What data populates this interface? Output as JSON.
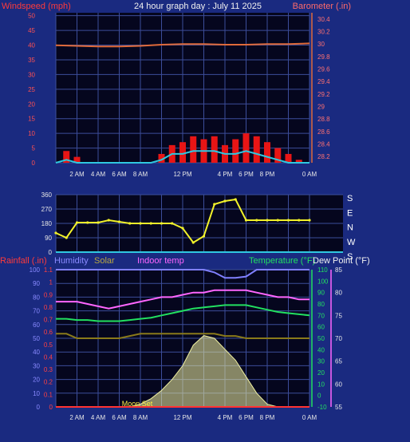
{
  "title": "24 hour graph day : July 11 2025",
  "colors": {
    "page_bg": "#1a2a80",
    "plot_bg": "#05061e",
    "grid": "#3c4d9a"
  },
  "chart_data": [
    {
      "type": "line",
      "name": "wind-barometer",
      "left_label": "Windspeed (mph)",
      "right_label": "Barometer (.in)",
      "left_ticks": [
        0,
        5,
        10,
        15,
        20,
        25,
        30,
        35,
        40,
        45,
        50
      ],
      "right_ticks": [
        "28.2",
        "28.4",
        "28.6",
        "28.8",
        "29",
        "29.2",
        "29.4",
        "29.6",
        "29.8",
        "30",
        "30.2",
        "30.4"
      ],
      "ylim_left": [
        0,
        51
      ],
      "ylim_right": [
        28.1,
        30.5
      ],
      "x_ticks": [
        "2 AM",
        "4 AM",
        "6 AM",
        "8 AM",
        "12 PM",
        "4 PM",
        "6 PM",
        "8 PM",
        "0 AM"
      ],
      "x_tick_hours": [
        2,
        4,
        6,
        8,
        12,
        16,
        18,
        20,
        24
      ],
      "barometer_in": [
        29.98,
        29.97,
        29.96,
        29.96,
        29.97,
        29.99,
        30.0,
        30.0,
        29.99,
        29.99,
        30.0,
        30.0,
        30.01
      ],
      "gust_mph": [
        0,
        4,
        2,
        0,
        0,
        0,
        0,
        0,
        0,
        0,
        3,
        6,
        7,
        9,
        8,
        9,
        6,
        8,
        10,
        9,
        7,
        5,
        3,
        1,
        0
      ],
      "wind_mph": [
        0,
        1,
        0,
        0,
        0,
        0,
        0,
        0,
        0,
        0,
        1,
        3,
        3,
        4,
        4,
        4,
        3,
        3,
        4,
        3,
        2,
        1,
        0,
        0,
        0
      ],
      "colors": {
        "barometer": "#e06a3a",
        "gust": "#e81515",
        "wind": "#2fc8e0"
      }
    },
    {
      "type": "scatter",
      "name": "wind-direction",
      "left_ticks": [
        0,
        90,
        180,
        270,
        360
      ],
      "right_labels": [
        "S",
        "E",
        "N",
        "W",
        "S"
      ],
      "ylim": [
        0,
        360
      ],
      "dir_deg": [
        120,
        90,
        185,
        185,
        185,
        200,
        190,
        180,
        180,
        180,
        180,
        180,
        150,
        60,
        100,
        300,
        320,
        330,
        200,
        200,
        200,
        200,
        200,
        200,
        200
      ],
      "color": "#f2f22a"
    },
    {
      "type": "line",
      "name": "temp-humidity-solar",
      "labels": {
        "rainfall": "Rainfall (.in)",
        "humidity": "Humidity",
        "solar": "Solar",
        "indoor": "Indoor temp",
        "temperature": "Temperature (°F)",
        "dewpoint": "Dew Point (°F)"
      },
      "left_ticks": [
        0,
        10,
        20,
        30,
        40,
        50,
        60,
        70,
        80,
        90,
        100
      ],
      "rain_ticks": [
        "0",
        "0.1",
        "0.2",
        "0.3",
        "0.4",
        "0.5",
        "0.6",
        "0.7",
        "0.8",
        "0.9",
        "1",
        "1.1"
      ],
      "temp_ticks": [
        -10,
        0,
        10,
        20,
        30,
        40,
        50,
        60,
        70,
        80,
        90,
        100,
        110
      ],
      "dew_ticks": [
        55,
        60,
        65,
        70,
        75,
        80,
        85
      ],
      "moon_label": "Moon Set",
      "indoor_f": [
        78,
        78,
        78,
        77.5,
        77,
        76.5,
        77,
        77.5,
        78,
        78.5,
        79,
        79,
        79.5,
        80,
        80,
        80.5,
        80.5,
        80.5,
        80.5,
        80,
        79.5,
        79,
        79,
        78.5,
        78.5
      ],
      "temperature_f": [
        67,
        67,
        66,
        66,
        65,
        65,
        65,
        66,
        67,
        68,
        70,
        72,
        74,
        76,
        77,
        78,
        79,
        79,
        79,
        77,
        75,
        73,
        72,
        71,
        70
      ],
      "dewpoint_f": [
        71,
        71,
        70,
        70,
        70,
        70,
        70,
        70.5,
        71,
        71,
        71,
        71,
        71,
        71,
        71,
        71,
        70.5,
        70.5,
        70,
        70,
        70,
        70,
        70,
        70,
        70
      ],
      "humidity_pct": [
        100,
        100,
        100,
        100,
        100,
        100,
        100,
        100,
        100,
        100,
        100,
        100,
        100,
        100,
        100,
        98,
        94,
        94,
        95,
        100,
        100,
        100,
        100,
        100,
        100
      ],
      "solar_pct": [
        0,
        0,
        0,
        0,
        0,
        0,
        0,
        0,
        2,
        6,
        12,
        20,
        30,
        45,
        52,
        50,
        42,
        34,
        22,
        10,
        2,
        0,
        0,
        0,
        0
      ],
      "colors": {
        "temperature": "#22e060",
        "dewpoint": "#e8e8e8",
        "indoor": "#ff66ff",
        "humidity": "#8080ff",
        "solar": "#f0f0a0",
        "dewline": "#8a7a1a",
        "rain": "#ff3333"
      }
    }
  ]
}
